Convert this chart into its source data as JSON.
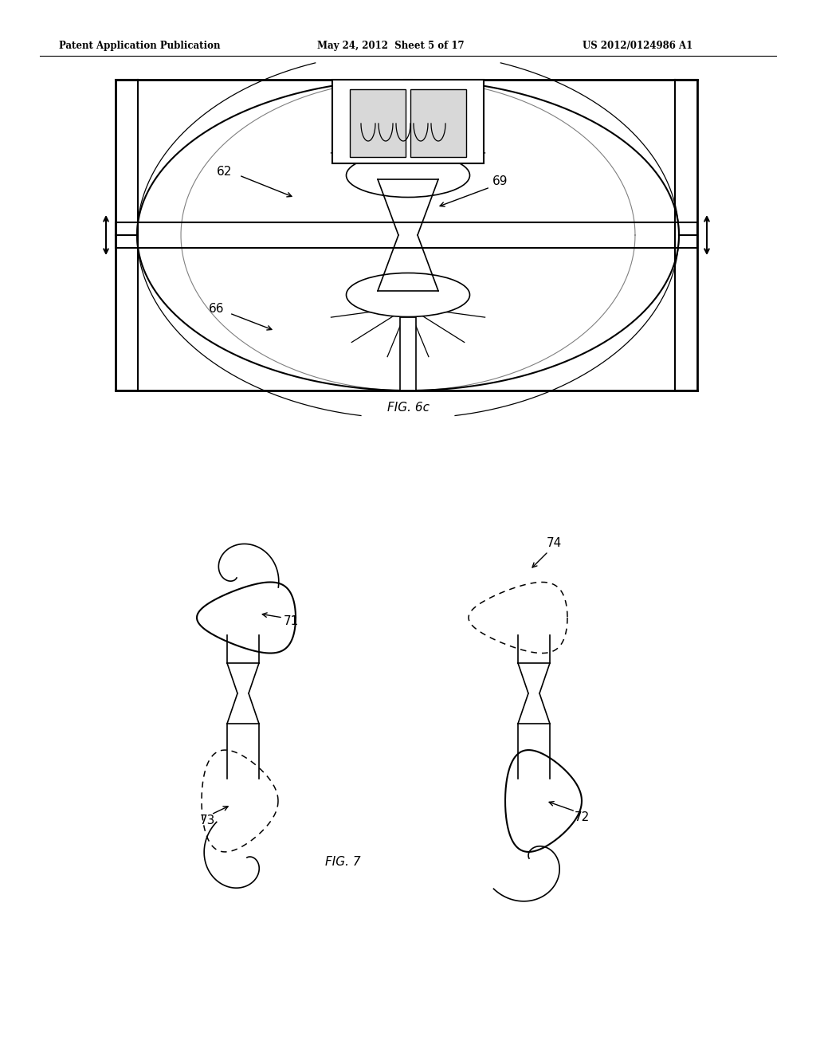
{
  "title_left": "Patent Application Publication",
  "title_mid": "May 24, 2012  Sheet 5 of 17",
  "title_right": "US 2012/0124986 A1",
  "fig6c_label": "FIG. 6c",
  "fig7_label": "FIG. 7",
  "label_62": "62",
  "label_66": "66",
  "label_69": "69",
  "label_71": "71",
  "label_72": "72",
  "label_73": "73",
  "label_74": "74",
  "bg_color": "#ffffff",
  "line_color": "#000000",
  "gray_color": "#888888"
}
